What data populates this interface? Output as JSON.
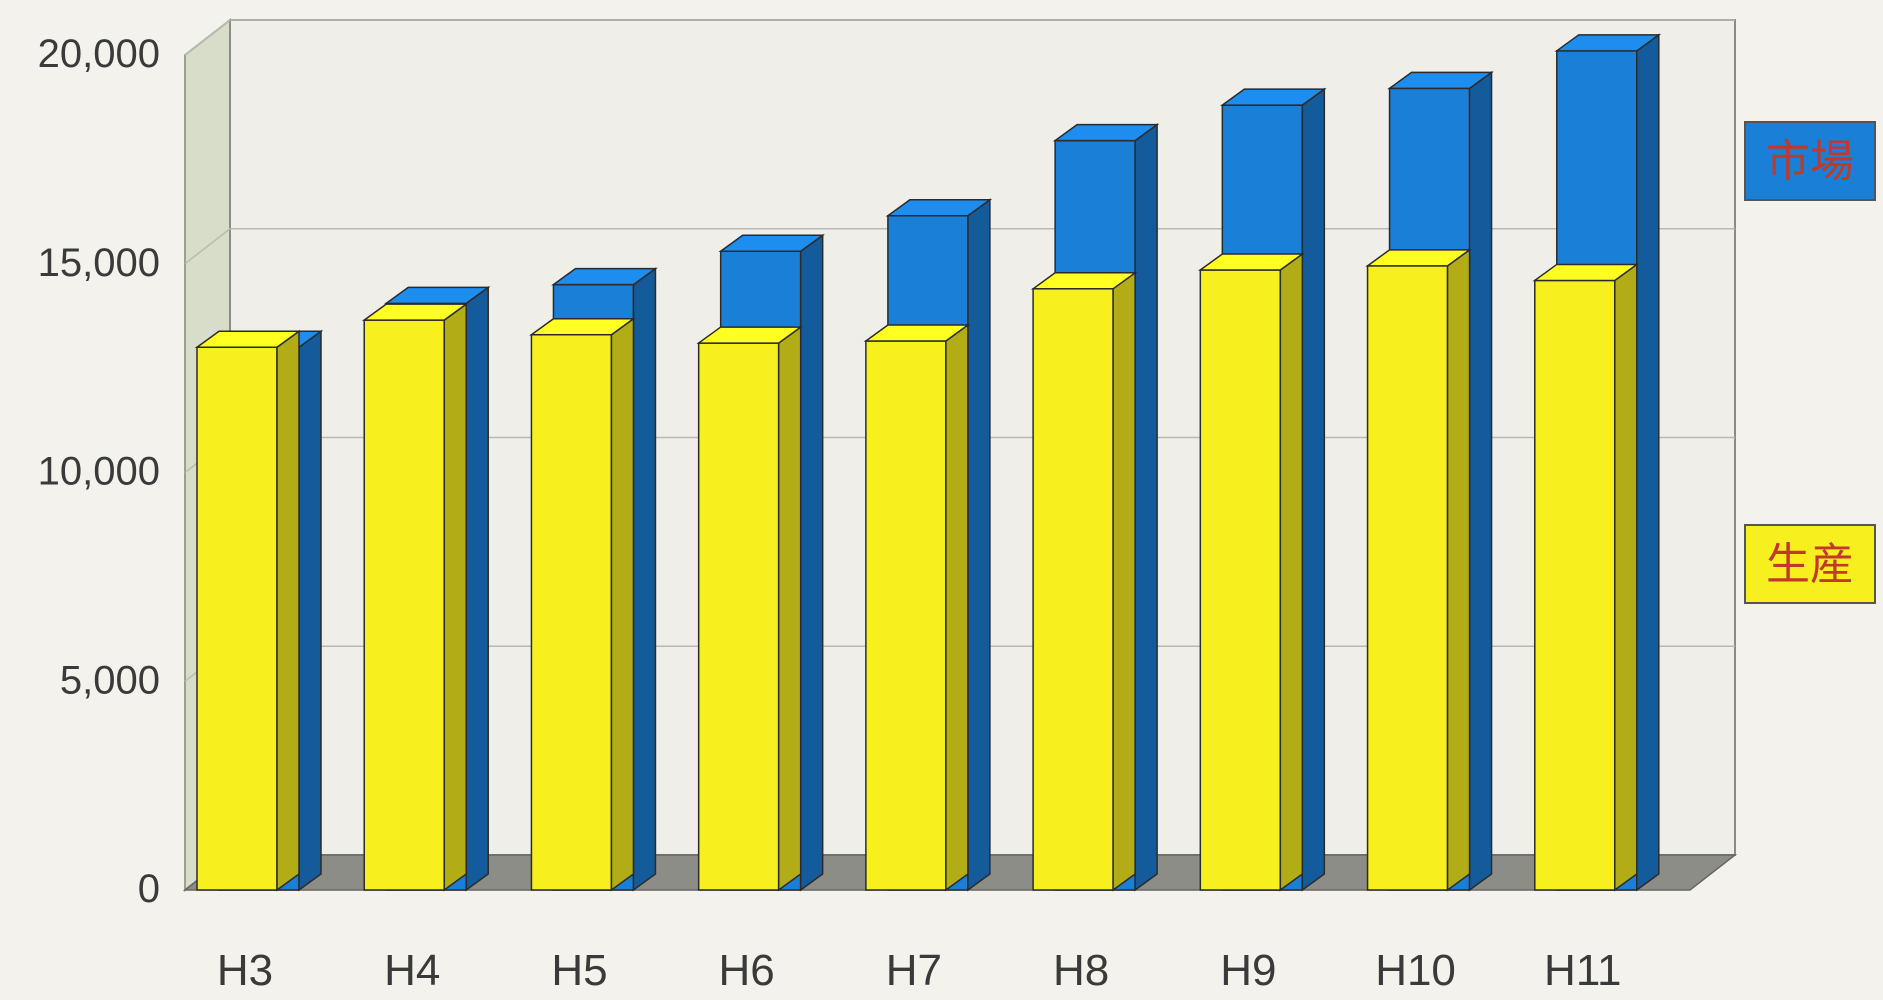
{
  "chart_data": {
    "type": "bar",
    "style": "3d-clustered-overlapping",
    "categories": [
      "H3",
      "H4",
      "H5",
      "H6",
      "H7",
      "H8",
      "H9",
      "H10",
      "H11"
    ],
    "series": [
      {
        "name": "生産",
        "color": "#f7f01e",
        "values": [
          13000,
          13650,
          13300,
          13100,
          13150,
          14400,
          14850,
          14950,
          14600
        ]
      },
      {
        "name": "市場",
        "color": "#1a7fd6",
        "values": [
          13000,
          14050,
          14500,
          15300,
          16150,
          17950,
          18800,
          19200,
          20100
        ]
      }
    ],
    "ylim": [
      0,
      20000
    ],
    "yticks": [
      "0",
      "5,000",
      "10,000",
      "15,000",
      "20,000"
    ],
    "title": "",
    "xlabel": "",
    "ylabel": "",
    "grid": true,
    "legend_placement": "right"
  }
}
